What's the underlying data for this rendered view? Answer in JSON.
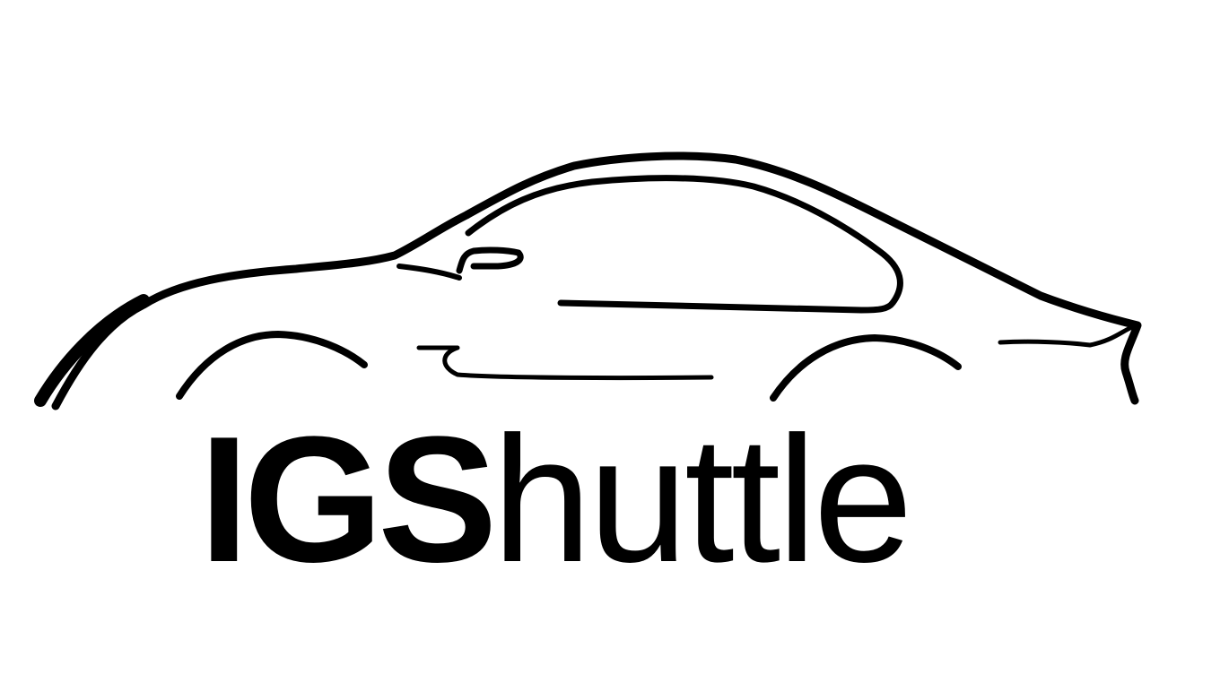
{
  "logo": {
    "wordmark_bold": "IG",
    "wordmark_bold_s": "S",
    "wordmark_regular": "huttle",
    "icon": "car-outline-icon",
    "colors": {
      "ink": "#000000",
      "background": "#ffffff"
    }
  }
}
